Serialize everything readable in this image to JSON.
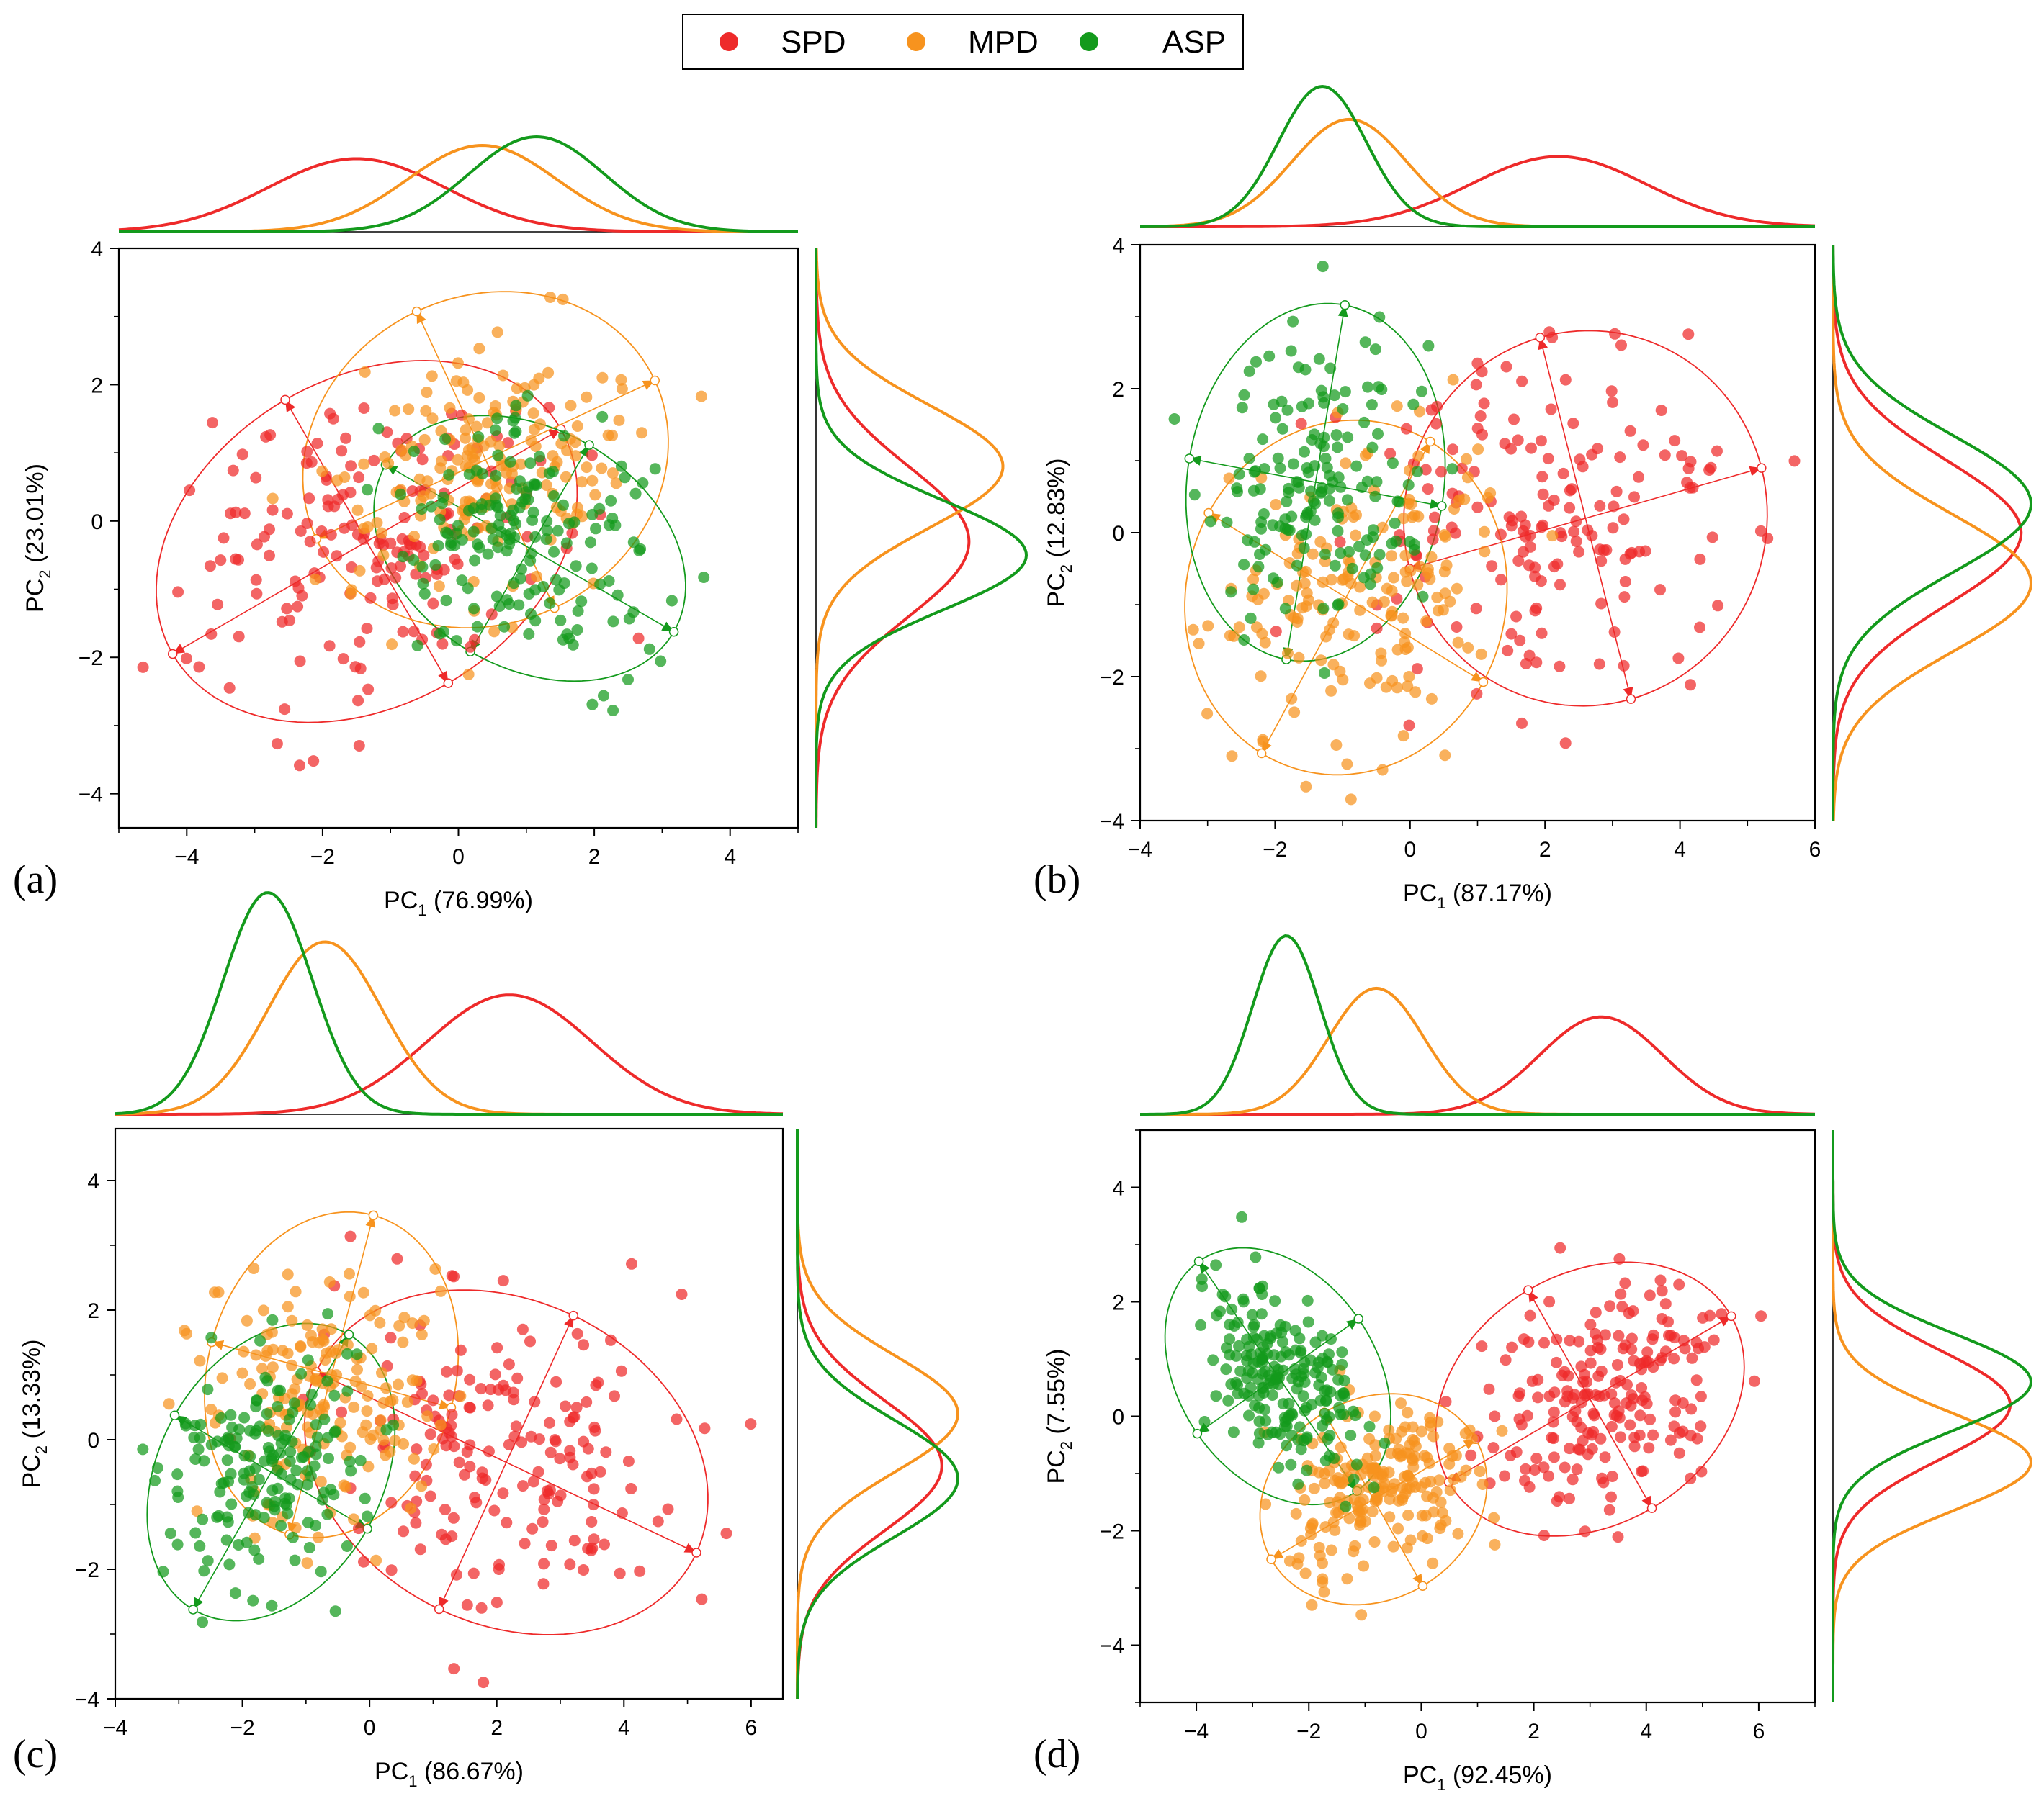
{
  "figure": "PCA score plots with marginal density curves",
  "colors": {
    "SPD": "#ee2a2a",
    "MPD": "#f7931e",
    "ASP": "#139a1c"
  },
  "legend": {
    "items": [
      "SPD",
      "MPD",
      "ASP"
    ]
  },
  "chart_data": [
    {
      "panel": "(a)",
      "type": "scatter",
      "xlabel_base": "PC",
      "xlabel_sub": "1",
      "xlabel_pct": "(76.99%)",
      "ylabel_base": "PC",
      "ylabel_sub": "2",
      "ylabel_pct": "(23.01%)",
      "xlim": [
        -5,
        5
      ],
      "ylim": [
        -4.5,
        4
      ],
      "xticks": [
        -4,
        -2,
        0,
        2,
        4
      ],
      "yticks": [
        -4,
        -2,
        0,
        2,
        4
      ],
      "series": [
        {
          "name": "SPD",
          "center": [
            -1.4,
            -0.4
          ],
          "spread": [
            1.3,
            1.1
          ],
          "corr": 0.1,
          "n": 170,
          "ellipse": {
            "center": [
              -1.35,
              -0.3
            ],
            "semi_axes": [
              3.3,
              2.4
            ],
            "angle_deg": 30
          },
          "density_x": {
            "mean": -1.5,
            "sd": 1.3
          },
          "density_y": {
            "mean": -0.3,
            "sd": 1.1
          }
        },
        {
          "name": "MPD",
          "center": [
            0.2,
            0.7
          ],
          "spread": [
            1.1,
            1.0
          ],
          "corr": 0.1,
          "n": 180,
          "ellipse": {
            "center": [
              0.4,
              0.9
            ],
            "semi_axes": [
              2.75,
              2.4
            ],
            "angle_deg": 25
          },
          "density_x": {
            "mean": 0.35,
            "sd": 1.1
          },
          "density_y": {
            "mean": 0.8,
            "sd": 0.9
          }
        },
        {
          "name": "ASP",
          "center": [
            1.0,
            -0.3
          ],
          "spread": [
            1.0,
            0.9
          ],
          "corr": -0.2,
          "n": 170,
          "ellipse": {
            "center": [
              1.05,
              -0.4
            ],
            "semi_axes": [
              2.45,
              1.75
            ],
            "angle_deg": -30
          },
          "density_x": {
            "mean": 1.15,
            "sd": 1.0
          },
          "density_y": {
            "mean": -0.5,
            "sd": 0.8
          }
        }
      ]
    },
    {
      "panel": "(b)",
      "type": "scatter",
      "xlabel_base": "PC",
      "xlabel_sub": "1",
      "xlabel_pct": "(87.17%)",
      "ylabel_base": "PC",
      "ylabel_sub": "2",
      "ylabel_pct": "(12.83%)",
      "xlim": [
        -4,
        6
      ],
      "ylim": [
        -4,
        4
      ],
      "xticks": [
        -4,
        -2,
        0,
        2,
        4,
        6
      ],
      "yticks": [
        -4,
        -2,
        0,
        2,
        4
      ],
      "series": [
        {
          "name": "SPD",
          "center": [
            2.1,
            0.1
          ],
          "spread": [
            1.4,
            1.2
          ],
          "corr": 0.0,
          "n": 170,
          "ellipse": {
            "center": [
              2.6,
              0.2
            ],
            "semi_axes": [
              2.7,
              2.6
            ],
            "angle_deg": 15
          },
          "density_x": {
            "mean": 2.2,
            "sd": 1.3
          },
          "density_y": {
            "mean": 0.0,
            "sd": 1.0
          }
        },
        {
          "name": "MPD",
          "center": [
            -0.9,
            -0.8
          ],
          "spread": [
            1.0,
            1.1
          ],
          "corr": 0.2,
          "n": 170,
          "ellipse": {
            "center": [
              -0.95,
              -0.9
            ],
            "semi_axes": [
              2.5,
              2.35
            ],
            "angle_deg": 60
          },
          "density_x": {
            "mean": -0.9,
            "sd": 0.85
          },
          "density_y": {
            "mean": -0.7,
            "sd": 0.95
          }
        },
        {
          "name": "ASP",
          "center": [
            -1.3,
            0.6
          ],
          "spread": [
            0.8,
            1.0
          ],
          "corr": 0.0,
          "n": 160,
          "ellipse": {
            "center": [
              -1.4,
              0.7
            ],
            "semi_axes": [
              2.5,
              1.9
            ],
            "angle_deg": 80
          },
          "density_x": {
            "mean": -1.3,
            "sd": 0.65
          },
          "density_y": {
            "mean": 0.4,
            "sd": 0.95
          }
        }
      ]
    },
    {
      "panel": "(c)",
      "type": "scatter",
      "xlabel_base": "PC",
      "xlabel_sub": "1",
      "xlabel_pct": "(86.67%)",
      "ylabel_base": "PC",
      "ylabel_sub": "2",
      "ylabel_pct": "(13.33%)",
      "xlim": [
        -4,
        6.5
      ],
      "ylim": [
        -4,
        4.8
      ],
      "xticks": [
        -4,
        -2,
        0,
        2,
        4,
        6
      ],
      "yticks": [
        -4,
        -2,
        0,
        2,
        4
      ],
      "series": [
        {
          "name": "SPD",
          "center": [
            2.2,
            -0.3
          ],
          "spread": [
            1.4,
            1.2
          ],
          "corr": 0.0,
          "n": 180,
          "ellipse": {
            "center": [
              2.15,
              -0.35
            ],
            "semi_axes": [
              3.3,
              2.5
            ],
            "angle_deg": -25
          },
          "density_x": {
            "mean": 2.2,
            "sd": 1.3
          },
          "density_y": {
            "mean": -0.4,
            "sd": 1.0
          }
        },
        {
          "name": "MPD",
          "center": [
            -0.7,
            0.8
          ],
          "spread": [
            1.0,
            1.0
          ],
          "corr": 0.1,
          "n": 170,
          "ellipse": {
            "center": [
              -0.6,
              1.0
            ],
            "semi_axes": [
              2.55,
              1.95
            ],
            "angle_deg": 75
          },
          "density_x": {
            "mean": -0.7,
            "sd": 0.9
          },
          "density_y": {
            "mean": 0.4,
            "sd": 0.9
          }
        },
        {
          "name": "ASP",
          "center": [
            -1.6,
            -0.5
          ],
          "spread": [
            0.8,
            0.9
          ],
          "corr": 0.2,
          "n": 170,
          "ellipse": {
            "center": [
              -1.55,
              -0.5
            ],
            "semi_axes": [
              2.45,
              1.75
            ],
            "angle_deg": 60
          },
          "density_x": {
            "mean": -1.6,
            "sd": 0.7
          },
          "density_y": {
            "mean": -0.6,
            "sd": 0.9
          }
        }
      ]
    },
    {
      "panel": "(d)",
      "type": "scatter",
      "xlabel_base": "PC",
      "xlabel_sub": "1",
      "xlabel_pct": "(92.45%)",
      "ylabel_base": "PC",
      "ylabel_sub": "2",
      "ylabel_pct": "(7.55%)",
      "xlim": [
        -5,
        7
      ],
      "ylim": [
        -5,
        5
      ],
      "xticks": [
        -4,
        -2,
        0,
        2,
        4,
        6
      ],
      "yticks": [
        -4,
        -2,
        0,
        2,
        4
      ],
      "series": [
        {
          "name": "SPD",
          "center": [
            3.2,
            0.3
          ],
          "spread": [
            1.1,
            1.0
          ],
          "corr": 0.2,
          "n": 200,
          "ellipse": {
            "center": [
              3.0,
              0.3
            ],
            "semi_axes": [
              2.9,
              2.2
            ],
            "angle_deg": 30
          },
          "density_x": {
            "mean": 3.2,
            "sd": 1.1
          },
          "density_y": {
            "mean": 0.2,
            "sd": 0.95
          }
        },
        {
          "name": "MPD",
          "center": [
            -0.7,
            -1.3
          ],
          "spread": [
            0.9,
            0.8
          ],
          "corr": 0.3,
          "n": 200,
          "ellipse": {
            "center": [
              -0.85,
              -1.45
            ],
            "semi_axes": [
              2.1,
              1.75
            ],
            "angle_deg": 30
          },
          "density_x": {
            "mean": -0.8,
            "sd": 0.85
          },
          "density_y": {
            "mean": -0.8,
            "sd": 0.85
          }
        },
        {
          "name": "ASP",
          "center": [
            -2.4,
            0.6
          ],
          "spread": [
            0.7,
            0.9
          ],
          "corr": -0.4,
          "n": 200,
          "ellipse": {
            "center": [
              -2.55,
              0.7
            ],
            "semi_axes": [
              2.45,
              1.75
            ],
            "angle_deg": -55
          },
          "density_x": {
            "mean": -2.4,
            "sd": 0.6
          },
          "density_y": {
            "mean": 0.6,
            "sd": 0.85
          }
        }
      ]
    }
  ]
}
